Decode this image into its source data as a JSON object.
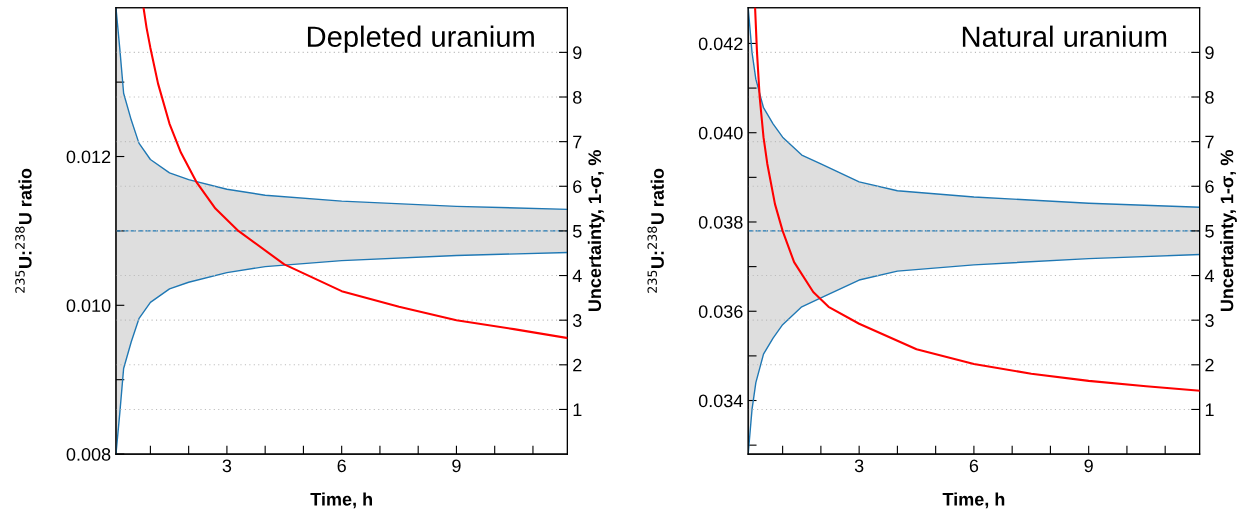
{
  "chart_data": [
    {
      "type": "line",
      "title": "Depleted uranium",
      "xlabel": "Time, h",
      "ylabel": "$^{235}$U:$^{238}$U ratio",
      "y2label": "Uncertainty, 1-σ, %",
      "xlim": [
        0.1,
        11.9
      ],
      "xticks": [
        {
          "value": 1,
          "label": null
        },
        {
          "value": 2,
          "label": null
        },
        3,
        {
          "value": 4,
          "label": null
        },
        {
          "value": 5,
          "label": null
        },
        6,
        {
          "value": 7,
          "label": null
        },
        {
          "value": 8,
          "label": null
        },
        9,
        {
          "value": 10,
          "label": null
        },
        {
          "value": 11,
          "label": null
        }
      ],
      "ylim": [
        0.008,
        0.014
      ],
      "yticks": [
        0.008,
        {
          "value": 0.009,
          "label": null
        },
        {
          "value": 0.01,
          "label": "0.010"
        },
        {
          "value": 0.011,
          "label": null
        },
        0.012,
        {
          "value": 0.013,
          "label": null
        }
      ],
      "y2lim": [
        0,
        10
      ],
      "y2ticks": [
        1,
        2,
        3,
        4,
        5,
        6,
        7,
        8,
        9
      ],
      "grid": "y2",
      "marker": "none",
      "series": [
        {
          "color": "#1f78b4",
          "line_style": "solid",
          "x": [
            0.1,
            0.2,
            0.3,
            0.5,
            0.7,
            1,
            1.5,
            2,
            3,
            4,
            6,
            9,
            11.9
          ],
          "values": [
            0.014,
            0.01345,
            0.01285,
            0.01249,
            0.01218,
            0.01196,
            0.01178,
            0.01169,
            0.01156,
            0.01148,
            0.0114,
            0.01133,
            0.01129
          ]
        },
        {
          "color": "#1f78b4",
          "line_style": "solid",
          "x": [
            0.1,
            0.2,
            0.3,
            0.5,
            0.7,
            1,
            1.5,
            2,
            3,
            4,
            6,
            9,
            11.9
          ],
          "values": [
            0.008,
            0.00855,
            0.00915,
            0.00951,
            0.00982,
            0.01004,
            0.01022,
            0.01031,
            0.01044,
            0.01052,
            0.0106,
            0.01067,
            0.01071
          ]
        },
        {
          "color": "#1f78b4",
          "line_style": "dashed",
          "x": [
            0.1,
            0.2,
            0.3,
            0.5,
            0.7,
            1,
            1.5,
            2,
            3,
            4,
            6,
            9,
            11.9
          ],
          "values": [
            0.011,
            0.011,
            0.011,
            0.011,
            0.011,
            0.011,
            0.011,
            0.011,
            0.011,
            0.011,
            0.011,
            0.011,
            0.011
          ],
          "upper": [
            0.014,
            0.01345,
            0.01285,
            0.01249,
            0.01218,
            0.01196,
            0.01178,
            0.01169,
            0.01156,
            0.01148,
            0.0114,
            0.01133,
            0.01129
          ],
          "lower": [
            0.008,
            0.00855,
            0.00915,
            0.00951,
            0.00982,
            0.01004,
            0.01022,
            0.01031,
            0.01044,
            0.01052,
            0.0106,
            0.01067,
            0.01071
          ]
        },
        {
          "color": "#ff0000",
          "axis": "y2",
          "line_style": "solid",
          "x": [
            0.82,
            0.9,
            1,
            1.2,
            1.5,
            1.8,
            2.2,
            2.7,
            3.3,
            4.5,
            6,
            7.5,
            9,
            10.5,
            11.9
          ],
          "values": [
            10,
            9.55,
            9.1,
            8.3,
            7.4,
            6.75,
            6.1,
            5.5,
            5.0,
            4.25,
            3.65,
            3.3,
            3.0,
            2.8,
            2.6
          ]
        }
      ]
    },
    {
      "type": "line",
      "title": "Natural uranium",
      "xlabel": "Time, h",
      "ylabel": "$^{235}$U:$^{238}$U ratio",
      "y2label": "Uncertainty, 1-σ, %",
      "xlim": [
        0.1,
        11.9
      ],
      "xticks": [
        {
          "value": 1,
          "label": null
        },
        {
          "value": 2,
          "label": null
        },
        3,
        {
          "value": 4,
          "label": null
        },
        {
          "value": 5,
          "label": null
        },
        6,
        {
          "value": 7,
          "label": null
        },
        {
          "value": 8,
          "label": null
        },
        9,
        {
          "value": 10,
          "label": null
        },
        {
          "value": 11,
          "label": null
        }
      ],
      "ylim": [
        0.0328,
        0.0428
      ],
      "yticks": [
        {
          "value": 0.033,
          "label": null
        },
        0.034,
        {
          "value": 0.035,
          "label": null
        },
        0.036,
        {
          "value": 0.037,
          "label": null
        },
        0.038,
        {
          "value": 0.039,
          "label": null
        },
        {
          "value": 0.04,
          "label": "0.040"
        },
        {
          "value": 0.041,
          "label": null
        },
        0.042
      ],
      "y2lim": [
        0,
        10
      ],
      "y2ticks": [
        1,
        2,
        3,
        4,
        5,
        6,
        7,
        8,
        9
      ],
      "grid": "y2",
      "marker": "none",
      "series": [
        {
          "color": "#1f78b4",
          "line_style": "solid",
          "x": [
            0.1,
            0.15,
            0.2,
            0.3,
            0.5,
            0.75,
            1,
            1.5,
            2,
            3,
            4,
            6,
            9,
            11.9
          ],
          "values": [
            0.0428,
            0.0423,
            0.0418,
            0.0412,
            0.04056,
            0.0402,
            0.0399,
            0.0395,
            0.0393,
            0.0389,
            0.0387,
            0.03856,
            0.03842,
            0.03833
          ]
        },
        {
          "color": "#1f78b4",
          "line_style": "solid",
          "x": [
            0.1,
            0.15,
            0.2,
            0.3,
            0.5,
            0.75,
            1,
            1.5,
            2,
            3,
            4,
            6,
            9,
            11.9
          ],
          "values": [
            0.0328,
            0.0333,
            0.0338,
            0.0344,
            0.03504,
            0.0354,
            0.0357,
            0.0361,
            0.0363,
            0.0367,
            0.0369,
            0.03704,
            0.03718,
            0.03727
          ]
        },
        {
          "color": "#1f78b4",
          "line_style": "dashed",
          "x": [
            0.1,
            0.15,
            0.2,
            0.3,
            0.5,
            0.75,
            1,
            1.5,
            2,
            3,
            4,
            6,
            9,
            11.9
          ],
          "values": [
            0.0378,
            0.0378,
            0.0378,
            0.0378,
            0.0378,
            0.0378,
            0.0378,
            0.0378,
            0.0378,
            0.0378,
            0.0378,
            0.0378,
            0.0378,
            0.0378
          ],
          "upper": [
            0.0428,
            0.0423,
            0.0418,
            0.0412,
            0.04056,
            0.0402,
            0.0399,
            0.0395,
            0.0393,
            0.0389,
            0.0387,
            0.03856,
            0.03842,
            0.03833
          ],
          "lower": [
            0.0328,
            0.0333,
            0.0338,
            0.0344,
            0.03504,
            0.0354,
            0.0357,
            0.0361,
            0.0363,
            0.0367,
            0.0369,
            0.03704,
            0.03718,
            0.03727
          ]
        },
        {
          "color": "#ff0000",
          "axis": "y2",
          "line_style": "solid",
          "x": [
            0.28,
            0.33,
            0.4,
            0.5,
            0.6,
            0.8,
            1,
            1.3,
            1.8,
            2.2,
            3,
            4.5,
            6,
            7.5,
            9,
            10.5,
            11.9
          ],
          "values": [
            10,
            9.0,
            8.0,
            7.1,
            6.5,
            5.6,
            5.0,
            4.3,
            3.63,
            3.3,
            2.92,
            2.35,
            2.02,
            1.8,
            1.64,
            1.52,
            1.42
          ]
        }
      ]
    }
  ]
}
